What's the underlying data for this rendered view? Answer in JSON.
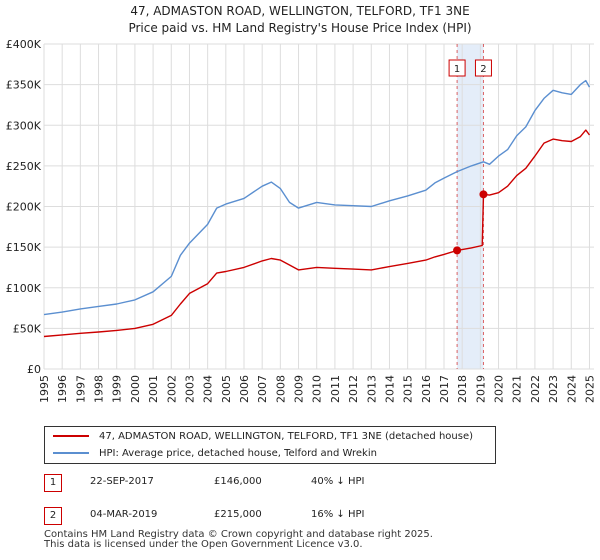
{
  "title": {
    "line1": "47, ADMASTON ROAD, WELLINGTON, TELFORD, TF1 3NE",
    "line2": "Price paid vs. HM Land Registry's House Price Index (HPI)"
  },
  "colors": {
    "property": "#cc0000",
    "hpi": "#5b8fd0",
    "grid": "#dddddd",
    "marker_band": "#dde8f7"
  },
  "chart_data": {
    "type": "line",
    "x_range": [
      1995,
      2025.25
    ],
    "ylim": [
      0,
      400000
    ],
    "x_ticks": [
      "1995",
      "1996",
      "1997",
      "1998",
      "1999",
      "2000",
      "2001",
      "2002",
      "2003",
      "2004",
      "2005",
      "2006",
      "2007",
      "2008",
      "2009",
      "2010",
      "2011",
      "2012",
      "2013",
      "2014",
      "2015",
      "2016",
      "2017",
      "2018",
      "2019",
      "2020",
      "2021",
      "2022",
      "2023",
      "2024",
      "2025"
    ],
    "y_ticks": [
      {
        "value": 0,
        "label": "£0"
      },
      {
        "value": 50000,
        "label": "£50K"
      },
      {
        "value": 100000,
        "label": "£100K"
      },
      {
        "value": 150000,
        "label": "£150K"
      },
      {
        "value": 200000,
        "label": "£200K"
      },
      {
        "value": 250000,
        "label": "£250K"
      },
      {
        "value": 300000,
        "label": "£300K"
      },
      {
        "value": 350000,
        "label": "£350K"
      },
      {
        "value": 400000,
        "label": "£400K"
      }
    ],
    "series": [
      {
        "name": "47, ADMASTON ROAD, WELLINGTON, TELFORD, TF1 3NE (detached house)",
        "color": "#cc0000",
        "points": [
          [
            1995,
            40000
          ],
          [
            1996,
            42000
          ],
          [
            1997,
            44000
          ],
          [
            1998,
            45500
          ],
          [
            1999,
            47500
          ],
          [
            2000,
            50000
          ],
          [
            2001,
            55000
          ],
          [
            2002,
            66000
          ],
          [
            2002.5,
            80000
          ],
          [
            2003,
            93000
          ],
          [
            2004,
            105000
          ],
          [
            2004.5,
            118000
          ],
          [
            2005,
            120000
          ],
          [
            2006,
            125000
          ],
          [
            2007,
            133000
          ],
          [
            2007.5,
            136000
          ],
          [
            2008,
            134000
          ],
          [
            2008.5,
            128000
          ],
          [
            2009,
            122000
          ],
          [
            2010,
            125000
          ],
          [
            2011,
            124000
          ],
          [
            2012,
            123000
          ],
          [
            2013,
            122000
          ],
          [
            2014,
            126000
          ],
          [
            2015,
            130000
          ],
          [
            2016,
            134000
          ],
          [
            2016.5,
            138000
          ],
          [
            2017,
            141000
          ],
          [
            2017.72,
            146000
          ],
          [
            2018.5,
            149000
          ],
          [
            2019.1,
            152000
          ],
          [
            2019.17,
            215000
          ],
          [
            2019.5,
            214000
          ],
          [
            2020,
            217000
          ],
          [
            2020.5,
            225000
          ],
          [
            2021,
            238000
          ],
          [
            2021.5,
            247000
          ],
          [
            2022,
            262000
          ],
          [
            2022.5,
            278000
          ],
          [
            2023,
            283000
          ],
          [
            2023.5,
            281000
          ],
          [
            2024,
            280000
          ],
          [
            2024.5,
            286000
          ],
          [
            2024.8,
            294000
          ],
          [
            2025,
            288000
          ]
        ]
      },
      {
        "name": "HPI: Average price, detached house, Telford and Wrekin",
        "color": "#5b8fd0",
        "points": [
          [
            1995,
            67000
          ],
          [
            1996,
            70000
          ],
          [
            1997,
            74000
          ],
          [
            1998,
            77000
          ],
          [
            1999,
            80000
          ],
          [
            2000,
            85000
          ],
          [
            2001,
            95000
          ],
          [
            2002,
            114000
          ],
          [
            2002.5,
            140000
          ],
          [
            2003,
            155000
          ],
          [
            2004,
            178000
          ],
          [
            2004.5,
            198000
          ],
          [
            2005,
            203000
          ],
          [
            2006,
            210000
          ],
          [
            2007,
            225000
          ],
          [
            2007.5,
            230000
          ],
          [
            2008,
            222000
          ],
          [
            2008.5,
            205000
          ],
          [
            2009,
            198000
          ],
          [
            2010,
            205000
          ],
          [
            2011,
            202000
          ],
          [
            2012,
            201000
          ],
          [
            2013,
            200000
          ],
          [
            2014,
            207000
          ],
          [
            2015,
            213000
          ],
          [
            2016,
            220000
          ],
          [
            2016.5,
            229000
          ],
          [
            2017,
            235000
          ],
          [
            2017.72,
            243000
          ],
          [
            2018.5,
            250000
          ],
          [
            2019.17,
            255000
          ],
          [
            2019.5,
            252000
          ],
          [
            2020,
            262000
          ],
          [
            2020.5,
            270000
          ],
          [
            2021,
            287000
          ],
          [
            2021.5,
            298000
          ],
          [
            2022,
            318000
          ],
          [
            2022.5,
            333000
          ],
          [
            2023,
            343000
          ],
          [
            2023.5,
            340000
          ],
          [
            2024,
            338000
          ],
          [
            2024.5,
            350000
          ],
          [
            2024.8,
            355000
          ],
          [
            2025,
            347000
          ]
        ]
      }
    ],
    "markers": [
      {
        "label": "1",
        "x": 2017.72,
        "value": 146000
      },
      {
        "label": "2",
        "x": 2019.17,
        "value": 215000
      }
    ]
  },
  "legend": {
    "property_label": "47, ADMASTON ROAD, WELLINGTON, TELFORD, TF1 3NE (detached house)",
    "hpi_label": "HPI: Average price, detached house, Telford and Wrekin"
  },
  "transactions": [
    {
      "num": "1",
      "date": "22-SEP-2017",
      "price": "£146,000",
      "hpi": "40% ↓ HPI"
    },
    {
      "num": "2",
      "date": "04-MAR-2019",
      "price": "£215,000",
      "hpi": "16% ↓ HPI"
    }
  ],
  "footer": {
    "line1": "Contains HM Land Registry data © Crown copyright and database right 2025.",
    "line2": "This data is licensed under the Open Government Licence v3.0."
  }
}
